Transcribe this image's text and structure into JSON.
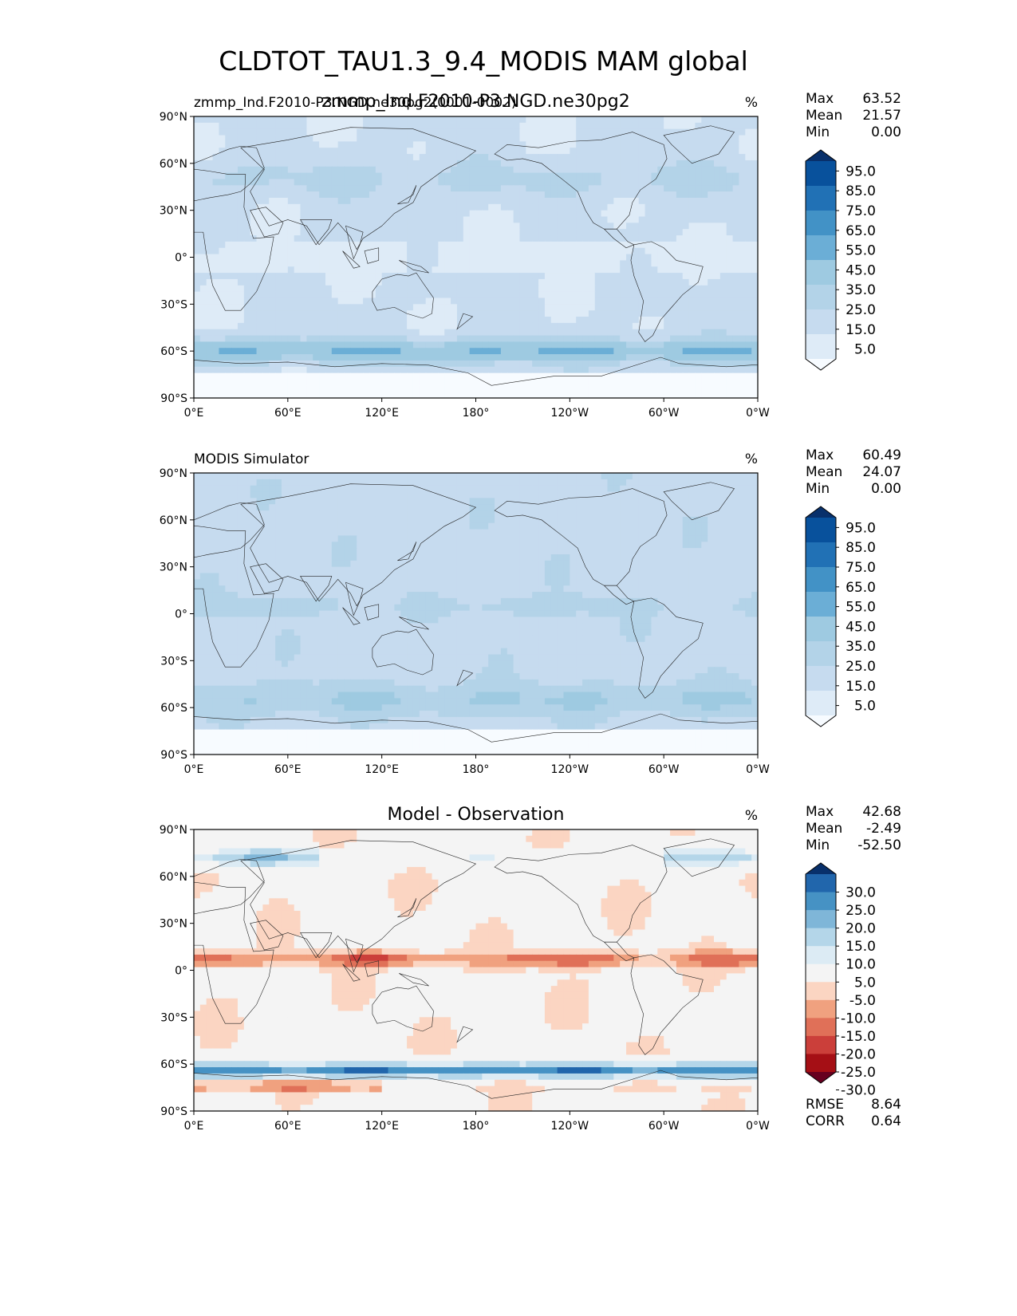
{
  "figure": {
    "title": "CLDTOT_TAU1.3_9.4_MODIS MAM global"
  },
  "axis_ticks": {
    "lat": [
      "90°N",
      "60°N",
      "30°N",
      "0°",
      "30°S",
      "60°S",
      "90°S"
    ],
    "lon": [
      "0°E",
      "60°E",
      "120°E",
      "180°",
      "120°W",
      "60°W",
      "0°W"
    ]
  },
  "panels": [
    {
      "id": "test",
      "left_title": "zmmp_Ind.F2010-P3.NGD.ne30pg2(0001-0002)",
      "center_title": "zmmp_Ind.F2010-P3.NGD.ne30pg2",
      "units": "%",
      "stats": [
        {
          "label": "Max",
          "value": "63.52"
        },
        {
          "label": "Mean",
          "value": "21.57"
        },
        {
          "label": "Min",
          "value": "0.00"
        }
      ],
      "colorbar_labels": [
        "95.0",
        "85.0",
        "75.0",
        "65.0",
        "55.0",
        "45.0",
        "35.0",
        "25.0",
        "15.0",
        "5.0"
      ],
      "colors": [
        "#f7fbff",
        "#deebf7",
        "#c6dbef",
        "#b3d3e8",
        "#9ecae1",
        "#6baed6",
        "#4292c6",
        "#2171b5",
        "#08519c",
        "#08306b"
      ],
      "field": "clouds_obs"
    },
    {
      "id": "ref",
      "left_title": "MODIS Simulator",
      "center_title": "",
      "units": "%",
      "stats": [
        {
          "label": "Max",
          "value": "60.49"
        },
        {
          "label": "Mean",
          "value": "24.07"
        },
        {
          "label": "Min",
          "value": "0.00"
        }
      ],
      "colorbar_labels": [
        "95.0",
        "85.0",
        "75.0",
        "65.0",
        "55.0",
        "45.0",
        "35.0",
        "25.0",
        "15.0",
        "5.0"
      ],
      "colors": [
        "#f7fbff",
        "#deebf7",
        "#c6dbef",
        "#b3d3e8",
        "#9ecae1",
        "#6baed6",
        "#4292c6",
        "#2171b5",
        "#08519c",
        "#08306b"
      ],
      "field": "clouds_model"
    },
    {
      "id": "diff",
      "left_title": "",
      "center_title": "Model - Observation",
      "units": "%",
      "stats": [
        {
          "label": "Max",
          "value": "42.68"
        },
        {
          "label": "Mean",
          "value": "-2.49"
        },
        {
          "label": "Min",
          "value": "-52.50"
        }
      ],
      "colorbar_labels": [
        "30.0",
        "25.0",
        "20.0",
        "15.0",
        "10.0",
        "5.0",
        "-5.0",
        "-10.0",
        "-15.0",
        "-20.0",
        "-25.0",
        "-30.0"
      ],
      "colors": [
        "#67001f",
        "#a50f15",
        "#cb3f3a",
        "#e07058",
        "#f0a17f",
        "#fbd5c2",
        "#f4f4f4",
        "#dcebf4",
        "#b4d6e9",
        "#7fb6d8",
        "#4692c4",
        "#2166ac",
        "#08306b"
      ],
      "bottom_stats": [
        {
          "label": "RMSE",
          "value": "8.64"
        },
        {
          "label": "CORR",
          "value": "0.64"
        }
      ],
      "field": "diff"
    }
  ]
}
